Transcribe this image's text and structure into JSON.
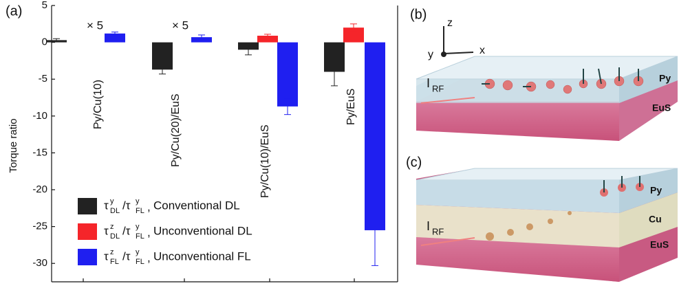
{
  "chart_data": {
    "type": "bar",
    "panel_label": "(a)",
    "y_label": "Torque ratio",
    "categories": [
      "Py/Cu(10)",
      "Py/Cu(20)/EuS",
      "Py/Cu(10)/EuS",
      "Py/EuS"
    ],
    "annotations": [
      "× 5",
      "× 5"
    ],
    "ylim": [
      -32.5,
      5
    ],
    "yticks": [
      5,
      0,
      -5,
      -10,
      -15,
      -20,
      -25,
      -30
    ],
    "series": [
      {
        "name": "Conventional DL",
        "symbol": [
          "τ",
          "y",
          "DL",
          "/τ",
          "y",
          "FL",
          ","
        ],
        "color": "#222222",
        "values": [
          0.3,
          -3.7,
          -1.0,
          -4.0
        ],
        "errors": [
          0.2,
          0.6,
          0.7,
          1.9
        ]
      },
      {
        "name": "Unconventional DL",
        "symbol": [
          "τ",
          "z",
          "DL",
          "/τ",
          "y",
          "FL",
          ","
        ],
        "color": "#f5252a",
        "values": [
          null,
          null,
          0.9,
          2.0
        ],
        "errors": [
          null,
          null,
          0.2,
          0.5
        ]
      },
      {
        "name": "Unconventional FL",
        "symbol": [
          "τ",
          "z",
          "FL",
          "/τ",
          "y",
          "FL",
          ","
        ],
        "color": "#1f1ff0",
        "values": [
          1.2,
          0.7,
          -8.7,
          -25.5
        ],
        "errors": [
          0.2,
          0.3,
          1.1,
          4.8
        ]
      }
    ]
  },
  "panels": {
    "b": {
      "label": "(b)",
      "z": "z",
      "y": "y",
      "x": "x",
      "top": "Py",
      "current": "I",
      "current_sub": "RF",
      "bottom": "EuS"
    },
    "c": {
      "label": "(c)",
      "top": "Py",
      "middle": "Cu",
      "current": "I",
      "current_sub": "RF",
      "bottom": "EuS"
    }
  }
}
